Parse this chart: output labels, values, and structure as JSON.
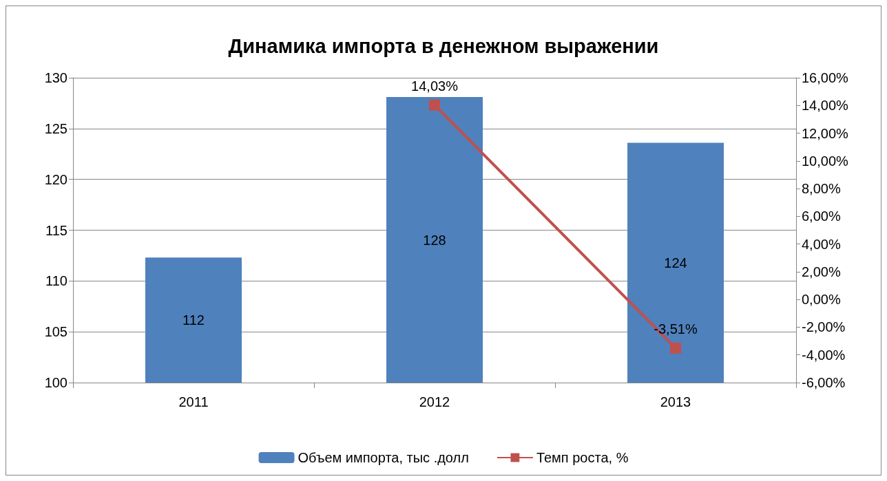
{
  "chart_data": {
    "type": "bar",
    "title": "Динамика импорта в денежном выражении",
    "categories": [
      "2011",
      "2012",
      "2013"
    ],
    "series": [
      {
        "name": "Объем импорта, тыс .долл",
        "color": "#4f81bd",
        "values": [
          112.3,
          128.1,
          123.6
        ],
        "value_labels": [
          "112",
          "128",
          "124"
        ]
      },
      {
        "name": "Темп роста, %",
        "type": "line",
        "axis": "y2",
        "color": "#c0504d",
        "marker": "square",
        "values": [
          null,
          14.03,
          -3.51
        ],
        "value_labels": [
          null,
          "14,03%",
          "-3,51%"
        ]
      }
    ],
    "ylim": [
      100,
      130
    ],
    "yticks": [
      100,
      105,
      110,
      115,
      120,
      125,
      130
    ],
    "y2lim": [
      -6,
      16
    ],
    "y2ticks": [
      {
        "value": -6,
        "label": "-6,00%"
      },
      {
        "value": -4,
        "label": "-4,00%"
      },
      {
        "value": -2,
        "label": "-2,00%"
      },
      {
        "value": 0,
        "label": "0,00%"
      },
      {
        "value": 2,
        "label": "2,00%"
      },
      {
        "value": 4,
        "label": "4,00%"
      },
      {
        "value": 6,
        "label": "6,00%"
      },
      {
        "value": 8,
        "label": "8,00%"
      },
      {
        "value": 10,
        "label": "10,00%"
      },
      {
        "value": 12,
        "label": "12,00%"
      },
      {
        "value": 14,
        "label": "14,00%"
      },
      {
        "value": 16,
        "label": "16,00%"
      }
    ],
    "grid": "y",
    "legend": "bottom"
  }
}
